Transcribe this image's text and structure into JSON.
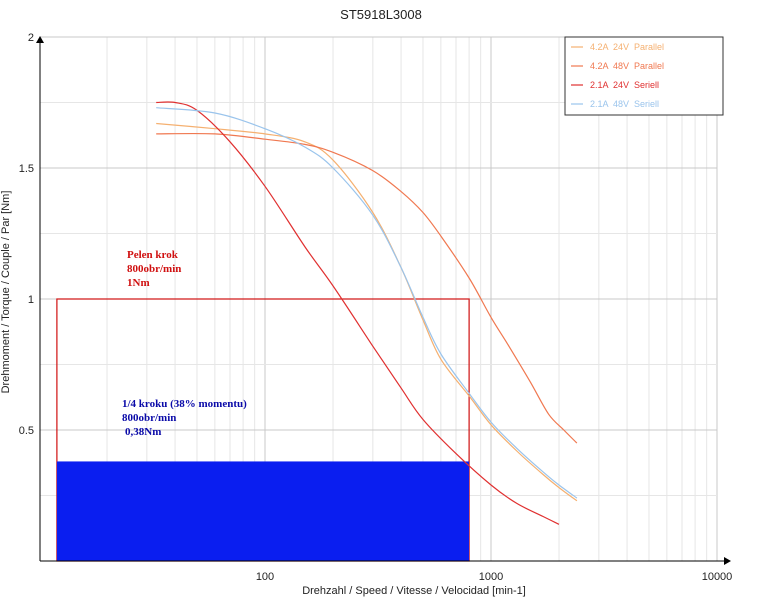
{
  "chart_data": {
    "type": "line",
    "title": "ST5918L3008",
    "xlabel": "Drehzahl / Speed / Vitesse / Velocidad [min-1]",
    "ylabel": "Drehmoment / Torque / Couple / Par [Nm]",
    "xscale": "log",
    "xlim": [
      12,
      10000
    ],
    "ylim": [
      0,
      2
    ],
    "x_ticks": [
      100,
      1000,
      10000
    ],
    "x_tick_labels": [
      "100",
      "1000",
      "10000"
    ],
    "y_ticks": [
      0.5,
      1,
      1.5,
      2
    ],
    "y_tick_labels": [
      "0.5",
      "1",
      "1.5",
      "2"
    ],
    "grid": true,
    "legend_position": "top-right",
    "series": [
      {
        "name": "4.2A  24V  Parallel",
        "color": "#f5b070",
        "points": [
          [
            33,
            1.67
          ],
          [
            60,
            1.65
          ],
          [
            100,
            1.63
          ],
          [
            150,
            1.6
          ],
          [
            200,
            1.53
          ],
          [
            300,
            1.33
          ],
          [
            400,
            1.12
          ],
          [
            500,
            0.92
          ],
          [
            600,
            0.77
          ],
          [
            800,
            0.63
          ],
          [
            1000,
            0.52
          ],
          [
            1300,
            0.42
          ],
          [
            1700,
            0.33
          ],
          [
            2000,
            0.28
          ],
          [
            2400,
            0.23
          ]
        ]
      },
      {
        "name": "4.2A  48V  Parallel",
        "color": "#f07850",
        "points": [
          [
            33,
            1.63
          ],
          [
            60,
            1.63
          ],
          [
            100,
            1.61
          ],
          [
            150,
            1.59
          ],
          [
            200,
            1.56
          ],
          [
            300,
            1.49
          ],
          [
            400,
            1.41
          ],
          [
            500,
            1.33
          ],
          [
            600,
            1.24
          ],
          [
            800,
            1.08
          ],
          [
            1000,
            0.93
          ],
          [
            1200,
            0.82
          ],
          [
            1500,
            0.68
          ],
          [
            1800,
            0.56
          ],
          [
            2100,
            0.5
          ],
          [
            2400,
            0.45
          ]
        ]
      },
      {
        "name": "2.1A  24V  Seriell",
        "color": "#e03030",
        "points": [
          [
            33,
            1.75
          ],
          [
            40,
            1.75
          ],
          [
            50,
            1.72
          ],
          [
            70,
            1.6
          ],
          [
            100,
            1.43
          ],
          [
            150,
            1.2
          ],
          [
            200,
            1.05
          ],
          [
            300,
            0.82
          ],
          [
            400,
            0.66
          ],
          [
            500,
            0.54
          ],
          [
            700,
            0.41
          ],
          [
            1000,
            0.29
          ],
          [
            1300,
            0.22
          ],
          [
            1700,
            0.17
          ],
          [
            2000,
            0.14
          ]
        ]
      },
      {
        "name": "2.1A  48V  Seriell",
        "color": "#9ac4ec",
        "points": [
          [
            33,
            1.73
          ],
          [
            60,
            1.71
          ],
          [
            100,
            1.65
          ],
          [
            150,
            1.58
          ],
          [
            200,
            1.5
          ],
          [
            300,
            1.32
          ],
          [
            400,
            1.12
          ],
          [
            500,
            0.93
          ],
          [
            600,
            0.79
          ],
          [
            800,
            0.64
          ],
          [
            1000,
            0.53
          ],
          [
            1300,
            0.43
          ],
          [
            1700,
            0.34
          ],
          [
            2000,
            0.29
          ],
          [
            2400,
            0.24
          ]
        ]
      }
    ],
    "regions": [
      {
        "x": [
          12,
          800
        ],
        "y": [
          0,
          1
        ],
        "style": "outline",
        "color": "#d01010"
      },
      {
        "x": [
          12,
          800
        ],
        "y": [
          0,
          0.38
        ],
        "style": "fill",
        "color": "#0a1ef0"
      }
    ],
    "annotations": [
      {
        "lines": [
          "Pelen krok",
          "800obr/min",
          "1Nm"
        ],
        "color": "#d01010"
      },
      {
        "lines": [
          "1/4 kroku (38% momentu)",
          "800obr/min",
          "0,38Nm"
        ],
        "color": "#0a0aa8"
      }
    ]
  }
}
